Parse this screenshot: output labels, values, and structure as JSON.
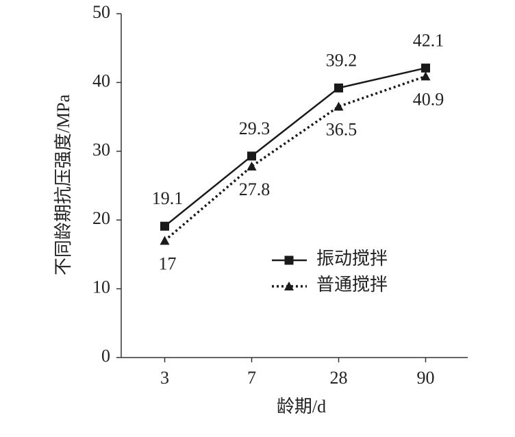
{
  "chart_data": {
    "type": "line",
    "y_label": "不同龄期抗压强度/MPa",
    "x_label": "龄期/d",
    "categories": [
      "3",
      "7",
      "28",
      "90"
    ],
    "series": [
      {
        "name": "振动搅拌",
        "color": "#1a1a1a",
        "dash": "solid",
        "marker": "square",
        "values": [
          19.1,
          29.3,
          39.2,
          42.1
        ]
      },
      {
        "name": "普通搅拌",
        "color": "#1a1a1a",
        "dash": "dotted",
        "marker": "triangle",
        "values": [
          17,
          27.8,
          36.5,
          40.9
        ]
      }
    ],
    "ylim": [
      0,
      50
    ],
    "yticks": [
      0,
      10,
      20,
      30,
      40,
      50
    ],
    "grid": false,
    "legend": "right"
  }
}
